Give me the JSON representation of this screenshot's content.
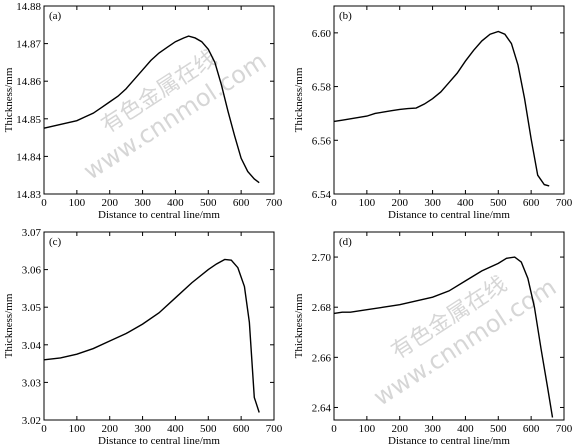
{
  "watermark": {
    "cn": "有色金属在线",
    "url": "www.cnnmol.com"
  },
  "chart_data": [
    {
      "type": "line",
      "panel_label": "(a)",
      "xlabel": "Distance to central line/mm",
      "ylabel": "Thickness/mm",
      "xlim": [
        0,
        700
      ],
      "ylim": [
        14.83,
        14.88
      ],
      "xticks": [
        0,
        100,
        200,
        300,
        400,
        500,
        600,
        700
      ],
      "yticks": [
        14.83,
        14.84,
        14.85,
        14.86,
        14.87,
        14.88
      ],
      "ytick_labels": [
        "14.83",
        "14.84",
        "14.85",
        "14.86",
        "14.87",
        "14.88"
      ],
      "grid": false,
      "series": [
        {
          "x": [
            0,
            25,
            50,
            75,
            100,
            125,
            150,
            175,
            200,
            225,
            250,
            275,
            300,
            325,
            350,
            375,
            400,
            425,
            440,
            460,
            480,
            500,
            520,
            540,
            560,
            580,
            600,
            620,
            640,
            655
          ],
          "y": [
            14.8475,
            14.848,
            14.8485,
            14.849,
            14.8495,
            14.8505,
            14.8515,
            14.853,
            14.8545,
            14.856,
            14.858,
            14.8605,
            14.863,
            14.8655,
            14.8675,
            14.869,
            14.8705,
            14.8715,
            14.872,
            14.8715,
            14.8705,
            14.8685,
            14.865,
            14.859,
            14.852,
            14.8455,
            14.8395,
            14.836,
            14.834,
            14.833
          ]
        }
      ]
    },
    {
      "type": "line",
      "panel_label": "(b)",
      "xlabel": "Distance to central line/mm",
      "ylabel": "Thickness/mm",
      "xlim": [
        0,
        700
      ],
      "ylim": [
        6.54,
        6.61
      ],
      "xticks": [
        0,
        100,
        200,
        300,
        400,
        500,
        600,
        700
      ],
      "yticks": [
        6.54,
        6.56,
        6.58,
        6.6
      ],
      "ytick_labels": [
        "6.54",
        "6.56",
        "6.58",
        "6.60"
      ],
      "grid": false,
      "series": [
        {
          "x": [
            0,
            25,
            50,
            75,
            100,
            125,
            150,
            175,
            200,
            225,
            250,
            275,
            300,
            325,
            350,
            375,
            400,
            425,
            450,
            475,
            500,
            520,
            540,
            560,
            580,
            600,
            620,
            640,
            655
          ],
          "y": [
            6.567,
            6.5675,
            6.568,
            6.5685,
            6.569,
            6.57,
            6.5705,
            6.571,
            6.5715,
            6.5718,
            6.572,
            6.5735,
            6.5755,
            6.578,
            6.5815,
            6.585,
            6.5895,
            6.5935,
            6.597,
            6.5995,
            6.6005,
            6.5995,
            6.596,
            6.588,
            6.5755,
            6.5605,
            6.547,
            6.5435,
            6.543
          ]
        }
      ]
    },
    {
      "type": "line",
      "panel_label": "(c)",
      "xlabel": "Distance to central line/mm",
      "ylabel": "Thickness/mm",
      "xlim": [
        0,
        700
      ],
      "ylim": [
        3.02,
        3.07
      ],
      "xticks": [
        0,
        100,
        200,
        300,
        400,
        500,
        600,
        700
      ],
      "yticks": [
        3.02,
        3.03,
        3.04,
        3.05,
        3.06,
        3.07
      ],
      "ytick_labels": [
        "3.02",
        "3.03",
        "3.04",
        "3.05",
        "3.06",
        "3.07"
      ],
      "grid": false,
      "series": [
        {
          "x": [
            0,
            50,
            100,
            150,
            200,
            250,
            300,
            350,
            400,
            450,
            500,
            525,
            550,
            570,
            590,
            610,
            625,
            640,
            655
          ],
          "y": [
            3.036,
            3.0365,
            3.0375,
            3.039,
            3.041,
            3.043,
            3.0455,
            3.0485,
            3.0525,
            3.0565,
            3.06,
            3.0615,
            3.0627,
            3.0625,
            3.0605,
            3.0555,
            3.046,
            3.026,
            3.022
          ]
        }
      ]
    },
    {
      "type": "line",
      "panel_label": "(d)",
      "xlabel": "Distance to central line/mm",
      "ylabel": "Thickness/mm",
      "xlim": [
        0,
        700
      ],
      "ylim": [
        2.635,
        2.71
      ],
      "xticks": [
        0,
        100,
        200,
        300,
        400,
        500,
        600,
        700
      ],
      "yticks": [
        2.64,
        2.66,
        2.68,
        2.7
      ],
      "ytick_labels": [
        "2.64",
        "2.66",
        "2.68",
        "2.70"
      ],
      "grid": false,
      "series": [
        {
          "x": [
            0,
            25,
            50,
            100,
            150,
            200,
            250,
            300,
            350,
            400,
            450,
            500,
            525,
            550,
            570,
            590,
            610,
            630,
            650,
            665
          ],
          "y": [
            2.6775,
            2.678,
            2.678,
            2.679,
            2.68,
            2.681,
            2.6825,
            2.684,
            2.6865,
            2.6905,
            2.6945,
            2.6975,
            2.6995,
            2.7,
            2.698,
            2.6915,
            2.68,
            2.6635,
            2.648,
            2.636
          ]
        }
      ]
    }
  ]
}
